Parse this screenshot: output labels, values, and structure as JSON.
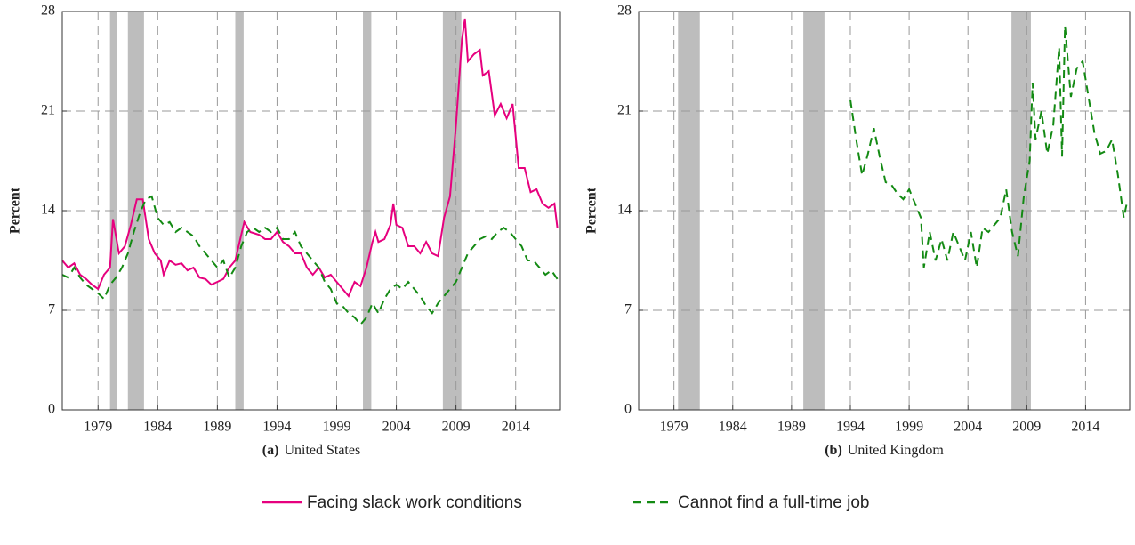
{
  "chart_data": [
    {
      "type": "line",
      "panel_label": "(a)",
      "title": "United States",
      "y_label": "Percent",
      "xlim": [
        1976,
        2017.75
      ],
      "xticks": [
        1979,
        1984,
        1989,
        1994,
        1999,
        2004,
        2009,
        2014
      ],
      "ylim": [
        0,
        28
      ],
      "yticks": [
        0,
        7,
        14,
        21,
        28
      ],
      "grid": true,
      "shaded_periods": [
        [
          1980.0,
          1980.55
        ],
        [
          1981.5,
          1982.85
        ],
        [
          1990.5,
          1991.2
        ],
        [
          2001.2,
          2001.9
        ],
        [
          2007.9,
          2009.45
        ]
      ],
      "series": [
        {
          "name": "Facing slack work conditions",
          "color": "#e6007e",
          "line_style": "solid",
          "x": [
            1976,
            1976.5,
            1977,
            1977.5,
            1978,
            1978.5,
            1979,
            1979.5,
            1980,
            1980.25,
            1980.75,
            1981.25,
            1981.75,
            1982.25,
            1982.75,
            1983.25,
            1983.75,
            1984.25,
            1984.5,
            1985,
            1985.5,
            1986,
            1986.5,
            1987,
            1987.5,
            1988,
            1988.5,
            1989,
            1989.5,
            1990,
            1990.5,
            1991,
            1991.25,
            1991.75,
            1992.5,
            1993,
            1993.5,
            1994,
            1994.5,
            1995,
            1995.5,
            1996,
            1996.5,
            1997,
            1997.5,
            1998,
            1998.5,
            1999,
            1999.5,
            2000,
            2000.5,
            2001,
            2001.5,
            2002,
            2002.25,
            2002.5,
            2003,
            2003.5,
            2003.75,
            2004,
            2004.5,
            2005,
            2005.5,
            2006,
            2006.5,
            2007,
            2007.5,
            2008,
            2008.5,
            2009,
            2009.5,
            2009.75,
            2010,
            2010.5,
            2011,
            2011.25,
            2011.75,
            2012.25,
            2012.75,
            2013.25,
            2013.75,
            2014.25,
            2014.75,
            2015.25,
            2015.75,
            2016.25,
            2016.75,
            2017.25,
            2017.5
          ],
          "values": [
            10.5,
            10,
            10.3,
            9.5,
            9.2,
            8.8,
            8.5,
            9.5,
            10,
            13.4,
            11,
            11.5,
            13,
            14.8,
            14.8,
            12,
            11,
            10.5,
            9.5,
            10.5,
            10.2,
            10.3,
            9.8,
            10,
            9.3,
            9.2,
            8.8,
            9,
            9.2,
            10,
            10.5,
            12.3,
            13.2,
            12.5,
            12.3,
            12,
            12,
            12.5,
            11.8,
            11.5,
            11,
            11,
            10,
            9.5,
            10,
            9.3,
            9.5,
            9,
            8.5,
            8,
            9,
            8.7,
            10,
            11.8,
            12.5,
            11.8,
            12,
            13,
            14.5,
            13,
            12.8,
            11.5,
            11.5,
            11,
            11.8,
            11,
            10.8,
            13.5,
            15,
            20,
            26,
            27.5,
            24.5,
            25,
            25.3,
            23.5,
            23.8,
            20.7,
            21.5,
            20.5,
            21.5,
            17,
            17,
            15.3,
            15.5,
            14.5,
            14.2,
            14.5,
            12.8
          ]
        },
        {
          "name": "Cannot find a full-time job",
          "color": "#138a13",
          "line_style": "dashed",
          "x": [
            1976,
            1976.5,
            1977,
            1977.5,
            1978,
            1978.5,
            1979,
            1979.5,
            1980,
            1980.5,
            1981,
            1981.5,
            1982,
            1982.5,
            1983,
            1983.5,
            1984,
            1984.5,
            1985,
            1985.5,
            1986,
            1986.5,
            1987,
            1987.5,
            1988,
            1988.5,
            1989,
            1989.5,
            1990,
            1990.5,
            1991,
            1991.5,
            1992,
            1992.5,
            1993,
            1993.5,
            1994,
            1994.5,
            1995,
            1995.5,
            1996,
            1996.5,
            1997,
            1997.5,
            1998,
            1998.5,
            1999,
            1999.5,
            2000,
            2000.5,
            2001,
            2001.5,
            2002,
            2002.5,
            2003,
            2003.5,
            2004,
            2004.5,
            2005,
            2005.5,
            2006,
            2006.5,
            2007,
            2007.5,
            2008,
            2008.5,
            2009,
            2009.5,
            2010,
            2010.5,
            2011,
            2011.5,
            2012,
            2012.5,
            2013,
            2013.5,
            2014,
            2014.5,
            2015,
            2015.5,
            2016,
            2016.5,
            2017,
            2017.5
          ],
          "values": [
            9.5,
            9.3,
            10,
            9.3,
            8.8,
            8.5,
            8.2,
            7.8,
            8.8,
            9.3,
            10,
            11,
            12.5,
            13.8,
            14.8,
            15,
            13.5,
            13,
            13.2,
            12.5,
            12.8,
            12.5,
            12.2,
            11.5,
            11,
            10.5,
            10,
            10.5,
            9.3,
            10,
            11.5,
            12.5,
            12.8,
            12.5,
            12.8,
            12.5,
            12.8,
            12,
            12,
            12.5,
            11.5,
            11,
            10.5,
            10,
            9,
            8.5,
            7.5,
            7.3,
            6.8,
            6.5,
            6,
            6.5,
            7.5,
            6.8,
            7.8,
            8.5,
            8.8,
            8.5,
            9,
            8.5,
            8,
            7.3,
            6.8,
            7.5,
            8,
            8.5,
            9,
            10,
            11,
            11.5,
            12,
            12.2,
            12,
            12.5,
            12.8,
            12.5,
            12,
            11.5,
            10.5,
            10.5,
            10,
            9.5,
            9.8,
            9.2
          ]
        }
      ]
    },
    {
      "type": "line",
      "panel_label": "(b)",
      "title": "United Kingdom",
      "y_label": "Percent",
      "xlim": [
        1976,
        2017.75
      ],
      "xticks": [
        1979,
        1984,
        1989,
        1994,
        1999,
        2004,
        2009,
        2014
      ],
      "ylim": [
        0,
        28
      ],
      "yticks": [
        0,
        7,
        14,
        21,
        28
      ],
      "grid": true,
      "shaded_periods": [
        [
          1979.35,
          1981.2
        ],
        [
          1990.0,
          1991.8
        ],
        [
          2007.7,
          2009.35
        ]
      ],
      "series": [
        {
          "color": "#138a13",
          "line_style": "dashed",
          "x": [
            1994,
            1994.5,
            1995,
            1995.5,
            1996,
            1996.5,
            1997,
            1997.5,
            1998,
            1998.5,
            1999,
            1999.5,
            2000,
            2000.25,
            2000.75,
            2001.25,
            2001.75,
            2002.25,
            2002.75,
            2003.25,
            2003.75,
            2004.25,
            2004.75,
            2005.25,
            2005.75,
            2006.25,
            2006.75,
            2007.25,
            2007.75,
            2008.25,
            2008.75,
            2009.25,
            2009.5,
            2009.75,
            2010.25,
            2010.75,
            2011.25,
            2011.75,
            2012,
            2012.25,
            2012.75,
            2013.25,
            2013.75,
            2014.25,
            2014.75,
            2015.25,
            2015.75,
            2016.25,
            2016.75,
            2017.25,
            2017.5
          ],
          "values": [
            21.8,
            19,
            16.5,
            18,
            19.8,
            17.8,
            16,
            15.8,
            15.2,
            14.8,
            15.5,
            14.5,
            13.5,
            10,
            12.5,
            10.5,
            12,
            10.5,
            12.5,
            11.5,
            10.5,
            12.5,
            10,
            12.8,
            12.5,
            13,
            13.5,
            15.5,
            12.5,
            10.8,
            15,
            17.5,
            23,
            19,
            21,
            18,
            20,
            25.5,
            17.8,
            27,
            22,
            24,
            24.5,
            22,
            19.5,
            18,
            18.2,
            19,
            16.5,
            13.5,
            14.5
          ]
        }
      ]
    }
  ]
}
